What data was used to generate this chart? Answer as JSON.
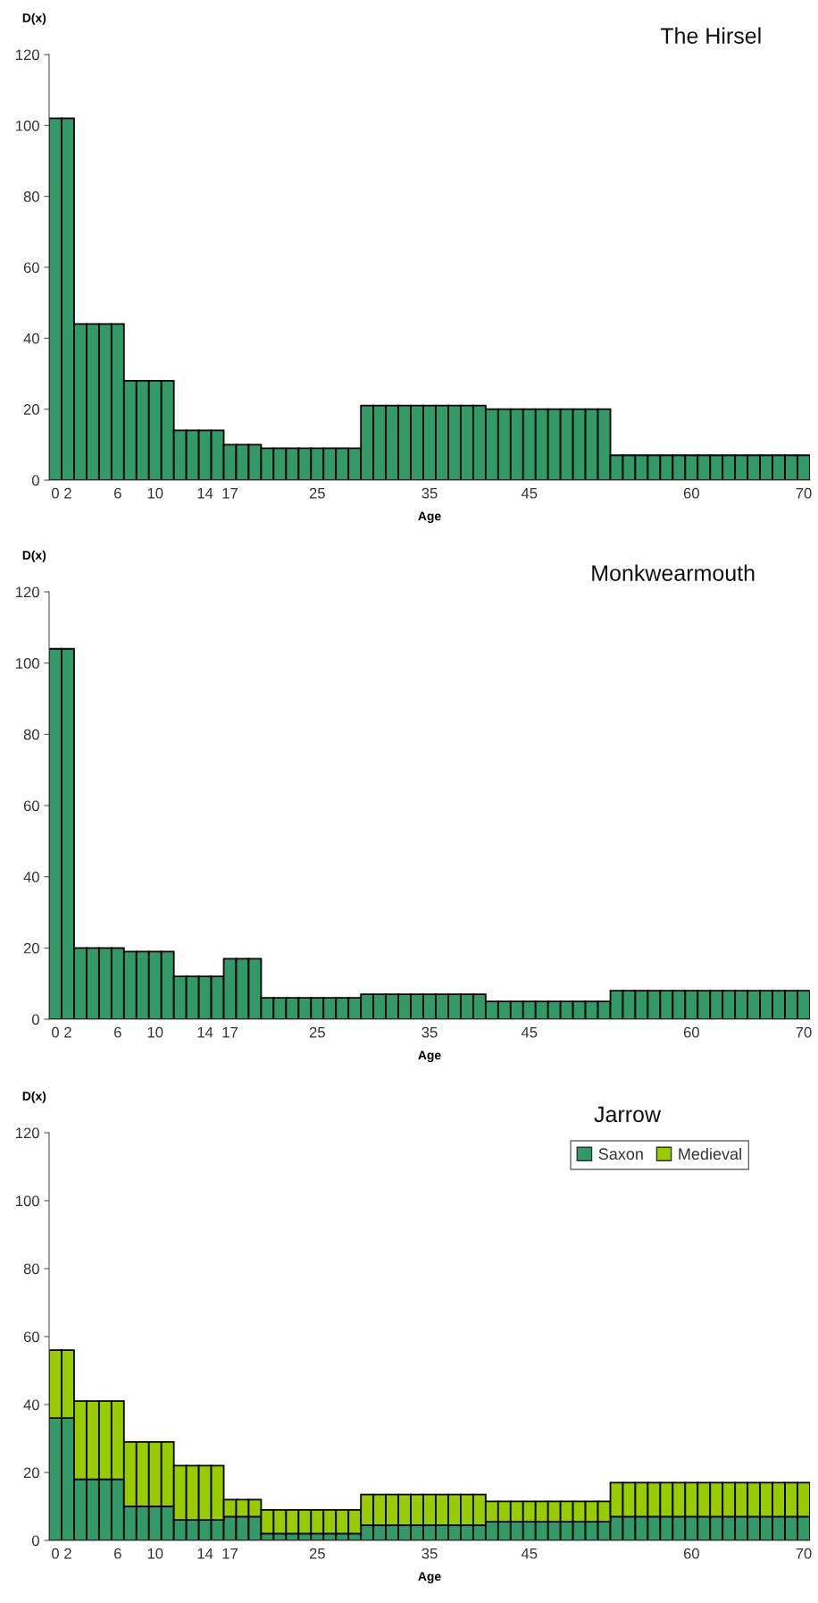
{
  "chart_data": [
    {
      "type": "bar",
      "title": "The Hirsel",
      "xlabel": "Age",
      "ylabel": "D(x)",
      "categories": [
        "0",
        "2",
        null,
        null,
        null,
        "6",
        null,
        null,
        "10",
        null,
        null,
        null,
        "14",
        null,
        "17",
        null,
        null,
        null,
        null,
        null,
        null,
        "25",
        null,
        null,
        null,
        null,
        null,
        null,
        null,
        null,
        "35",
        null,
        null,
        null,
        null,
        null,
        null,
        null,
        "45",
        null,
        null,
        null,
        null,
        null,
        null,
        null,
        null,
        null,
        null,
        null,
        null,
        "60",
        null,
        null,
        null,
        null,
        null,
        null,
        null,
        null,
        "70"
      ],
      "values": [
        102,
        102,
        44,
        44,
        44,
        44,
        28,
        28,
        28,
        28,
        14,
        14,
        14,
        14,
        10,
        10,
        10,
        9,
        9,
        9,
        9,
        9,
        9,
        9,
        9,
        21,
        21,
        21,
        21,
        21,
        21,
        21,
        21,
        21,
        21,
        20,
        20,
        20,
        20,
        20,
        20,
        20,
        20,
        20,
        20,
        7,
        7,
        7,
        7,
        7,
        7,
        7,
        7,
        7,
        7,
        7,
        7,
        7,
        7,
        7,
        7
      ],
      "color": "#339966",
      "ylim": [
        0,
        120
      ],
      "yticks": [
        0,
        20,
        40,
        60,
        80,
        100,
        120
      ]
    },
    {
      "type": "bar",
      "title": "Monkwearmouth",
      "xlabel": "Age",
      "ylabel": "D(x)",
      "categories": [
        "0",
        "2",
        null,
        null,
        null,
        "6",
        null,
        null,
        "10",
        null,
        null,
        null,
        "14",
        null,
        "17",
        null,
        null,
        null,
        null,
        null,
        null,
        "25",
        null,
        null,
        null,
        null,
        null,
        null,
        null,
        null,
        "35",
        null,
        null,
        null,
        null,
        null,
        null,
        null,
        "45",
        null,
        null,
        null,
        null,
        null,
        null,
        null,
        null,
        null,
        null,
        null,
        null,
        "60",
        null,
        null,
        null,
        null,
        null,
        null,
        null,
        null,
        "70"
      ],
      "values": [
        104,
        104,
        20,
        20,
        20,
        20,
        19,
        19,
        19,
        19,
        12,
        12,
        12,
        12,
        17,
        17,
        17,
        6,
        6,
        6,
        6,
        6,
        6,
        6,
        6,
        7,
        7,
        7,
        7,
        7,
        7,
        7,
        7,
        7,
        7,
        5,
        5,
        5,
        5,
        5,
        5,
        5,
        5,
        5,
        5,
        8,
        8,
        8,
        8,
        8,
        8,
        8,
        8,
        8,
        8,
        8,
        8,
        8,
        8,
        8,
        8
      ],
      "color": "#339966",
      "ylim": [
        0,
        120
      ],
      "yticks": [
        0,
        20,
        40,
        60,
        80,
        100,
        120
      ]
    },
    {
      "type": "bar",
      "title": "Jarrow",
      "xlabel": "Age",
      "ylabel": "D(x)",
      "stacked": true,
      "legend": "top right",
      "categories": [
        "0",
        "2",
        null,
        null,
        null,
        "6",
        null,
        null,
        "10",
        null,
        null,
        null,
        "14",
        null,
        "17",
        null,
        null,
        null,
        null,
        null,
        null,
        "25",
        null,
        null,
        null,
        null,
        null,
        null,
        null,
        null,
        "35",
        null,
        null,
        null,
        null,
        null,
        null,
        null,
        "45",
        null,
        null,
        null,
        null,
        null,
        null,
        null,
        null,
        null,
        null,
        null,
        null,
        "60",
        null,
        null,
        null,
        null,
        null,
        null,
        null,
        null,
        "70"
      ],
      "series": [
        {
          "name": "Saxon",
          "color": "#339966",
          "values": [
            36,
            36,
            18,
            18,
            18,
            18,
            10,
            10,
            10,
            10,
            6,
            6,
            6,
            6,
            7,
            7,
            7,
            2,
            2,
            2,
            2,
            2,
            2,
            2,
            2,
            4.5,
            4.5,
            4.5,
            4.5,
            4.5,
            4.5,
            4.5,
            4.5,
            4.5,
            4.5,
            5.5,
            5.5,
            5.5,
            5.5,
            5.5,
            5.5,
            5.5,
            5.5,
            5.5,
            5.5,
            7,
            7,
            7,
            7,
            7,
            7,
            7,
            7,
            7,
            7,
            7,
            7,
            7,
            7,
            7,
            7
          ]
        },
        {
          "name": "Medieval",
          "color": "#99cc00",
          "values": [
            20,
            20,
            23,
            23,
            23,
            23,
            19,
            19,
            19,
            19,
            16,
            16,
            16,
            16,
            5,
            5,
            5,
            7,
            7,
            7,
            7,
            7,
            7,
            7,
            7,
            9,
            9,
            9,
            9,
            9,
            9,
            9,
            9,
            9,
            9,
            6,
            6,
            6,
            6,
            6,
            6,
            6,
            6,
            6,
            6,
            10,
            10,
            10,
            10,
            10,
            10,
            10,
            10,
            10,
            10,
            10,
            10,
            10,
            10,
            10,
            10
          ]
        }
      ],
      "ylim": [
        0,
        120
      ],
      "yticks": [
        0,
        20,
        40,
        60,
        80,
        100,
        120
      ]
    }
  ]
}
